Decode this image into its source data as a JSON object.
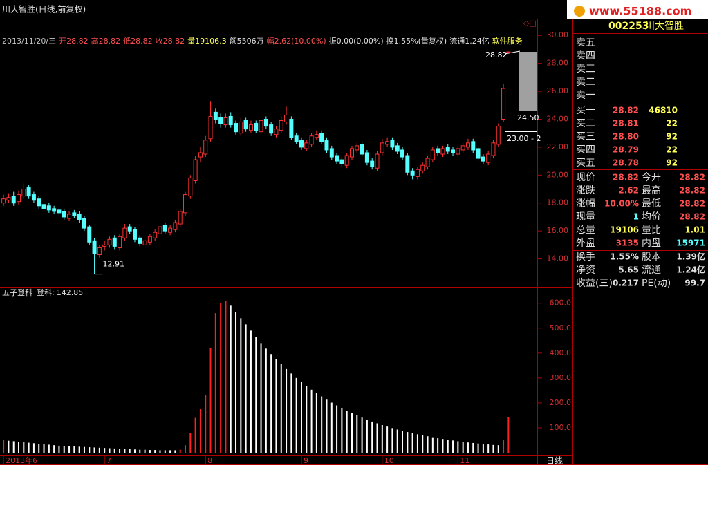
{
  "header": {
    "title": "川大智胜(日线,前复权)",
    "logo": "www.55188.com",
    "period_label": "日线"
  },
  "info_bar": {
    "segments": [
      "2013/11/20/三",
      "开28.82",
      "高28.82",
      "低28.82",
      "收28.82",
      "量19106.3",
      "额5506万",
      "幅2.62(10.00%)",
      "振0.00(0.00%)",
      "换1.55%(量复权)",
      "流通1.24亿",
      "软件服务"
    ],
    "colors": [
      "#c0c0c0",
      "#ff5050",
      "#ff5050",
      "#ff5050",
      "#ff5050",
      "#ffff54",
      "#e0e0e0",
      "#ff5050",
      "#e0e0e0",
      "#e0e0e0",
      "#e0e0e0",
      "#ffff54"
    ]
  },
  "chart_data": [
    {
      "type": "candlestick",
      "up_color": "#ff3232",
      "down_color": "#54ffff",
      "xlim": [
        -0.7,
        105.7
      ],
      "ylim": [
        12,
        31.15
      ],
      "yticks": [
        {
          "value": 14,
          "label": "14.00"
        },
        {
          "value": 16,
          "label": "16.00"
        },
        {
          "value": 18,
          "label": "18.00"
        },
        {
          "value": 20,
          "label": "20.00"
        },
        {
          "value": 22,
          "label": "22.00"
        },
        {
          "value": 24,
          "label": "24.00"
        },
        {
          "value": 26,
          "label": "26.00"
        },
        {
          "value": 28,
          "label": "28.00"
        },
        {
          "value": 30,
          "label": "30.00"
        }
      ],
      "annotations": [
        "24.50",
        "23.00 - 2"
      ],
      "open": [
        18.0,
        18.2,
        18.5,
        18.1,
        18.5,
        19.1,
        18.6,
        18.3,
        17.9,
        17.8,
        17.6,
        17.5,
        17.4,
        16.9,
        17.3,
        17.2,
        16.9,
        16.3,
        15.3,
        14.3,
        14.9,
        15.0,
        15.5,
        14.8,
        15.5,
        16.3,
        16.1,
        15.5,
        15.0,
        15.2,
        15.5,
        15.8,
        16.4,
        15.9,
        16.1,
        16.5,
        17.3,
        18.5,
        19.6,
        21.3,
        21.5,
        22.6,
        24.5,
        24.1,
        23.6,
        24.2,
        23.7,
        23.0,
        23.9,
        23.2,
        23.7,
        23.1,
        24.0,
        23.6,
        22.9,
        23.2,
        23.8,
        24.0,
        22.8,
        22.5,
        21.9,
        22.2,
        22.7,
        23.0,
        22.5,
        21.9,
        21.4,
        21.1,
        20.7,
        21.3,
        21.8,
        22.2,
        21.6,
        21.0,
        20.5,
        21.6,
        22.2,
        22.5,
        22.1,
        21.8,
        21.4,
        20.3,
        19.9,
        20.3,
        20.6,
        21.1,
        21.9,
        21.5,
        22.0,
        21.8,
        21.5,
        21.8,
        22.0,
        22.4,
        21.9,
        21.3,
        20.9,
        21.4,
        22.2,
        24.0,
        28.82
      ],
      "high": [
        18.6,
        18.7,
        18.8,
        18.9,
        19.4,
        19.3,
        18.8,
        18.5,
        18.1,
        18.0,
        17.8,
        17.7,
        17.6,
        17.4,
        17.5,
        17.4,
        17.1,
        16.4,
        15.5,
        15.0,
        15.3,
        15.6,
        15.7,
        15.8,
        16.5,
        16.5,
        16.3,
        15.7,
        15.5,
        15.8,
        16.1,
        16.5,
        16.6,
        16.4,
        16.8,
        17.6,
        18.8,
        20.0,
        21.4,
        22.0,
        22.8,
        25.3,
        24.8,
        24.4,
        24.4,
        24.5,
        23.9,
        24.1,
        24.1,
        23.9,
        23.9,
        24.1,
        24.2,
        23.8,
        23.5,
        24.2,
        24.9,
        24.2,
        23.0,
        22.7,
        22.5,
        23.0,
        23.2,
        23.2,
        22.7,
        22.1,
        21.6,
        21.3,
        21.6,
        22.1,
        22.3,
        22.4,
        21.8,
        21.2,
        21.7,
        22.6,
        22.7,
        22.7,
        22.3,
        22.0,
        21.6,
        20.5,
        20.6,
        20.9,
        21.4,
        22.0,
        22.1,
        22.1,
        22.2,
        22.0,
        22.1,
        22.3,
        22.6,
        22.6,
        22.1,
        21.5,
        21.7,
        22.5,
        23.7,
        26.5,
        28.82
      ],
      "low": [
        17.8,
        18.0,
        17.8,
        17.9,
        18.3,
        18.3,
        18.0,
        17.6,
        17.4,
        17.3,
        17.2,
        17.1,
        16.8,
        16.7,
        16.9,
        16.6,
        16.0,
        15.0,
        12.91,
        14.1,
        14.6,
        14.8,
        14.7,
        14.6,
        15.3,
        15.8,
        15.2,
        14.9,
        14.8,
        15.0,
        15.3,
        15.6,
        15.8,
        15.7,
        15.9,
        16.3,
        17.1,
        18.3,
        19.4,
        20.9,
        21.3,
        22.4,
        23.7,
        23.4,
        23.4,
        23.4,
        22.9,
        22.8,
        23.1,
        23.0,
        23.0,
        22.9,
        23.3,
        22.8,
        22.7,
        23.0,
        23.6,
        22.5,
        22.2,
        21.8,
        21.7,
        22.0,
        22.5,
        22.2,
        21.6,
        21.1,
        20.8,
        20.6,
        20.5,
        21.1,
        21.6,
        21.3,
        20.7,
        20.4,
        20.3,
        21.4,
        22.0,
        21.8,
        21.5,
        21.1,
        20.0,
        19.7,
        19.7,
        20.1,
        20.4,
        20.9,
        21.4,
        21.3,
        21.5,
        21.4,
        21.3,
        21.6,
        21.8,
        21.6,
        21.0,
        20.8,
        20.7,
        21.2,
        22.0,
        23.8,
        28.82
      ],
      "close": [
        18.3,
        18.4,
        18.0,
        18.6,
        19.0,
        18.5,
        18.2,
        17.8,
        17.6,
        17.5,
        17.4,
        17.3,
        17.0,
        17.2,
        17.1,
        16.8,
        16.2,
        15.2,
        14.4,
        14.8,
        15.0,
        15.4,
        14.9,
        15.6,
        16.2,
        16.0,
        15.4,
        15.1,
        15.3,
        15.6,
        15.9,
        16.3,
        16.0,
        16.2,
        16.6,
        17.4,
        18.6,
        19.8,
        21.1,
        21.6,
        22.5,
        24.2,
        24.0,
        23.7,
        24.1,
        23.6,
        23.1,
        23.8,
        23.3,
        23.6,
        23.2,
        23.9,
        23.5,
        23.0,
        23.3,
        23.9,
        24.3,
        22.7,
        22.4,
        22.0,
        22.3,
        22.8,
        22.9,
        22.4,
        21.8,
        21.3,
        21.0,
        20.8,
        21.4,
        21.9,
        22.1,
        21.5,
        20.9,
        20.6,
        21.5,
        22.3,
        22.4,
        22.0,
        21.7,
        21.3,
        20.2,
        20.0,
        20.4,
        20.7,
        21.2,
        21.8,
        21.6,
        21.9,
        21.7,
        21.6,
        21.9,
        22.1,
        22.3,
        21.8,
        21.2,
        21.0,
        21.5,
        22.3,
        23.5,
        26.2,
        28.82
      ]
    },
    {
      "type": "bar",
      "title": "五子登科",
      "label": "登科:",
      "up_color": "#ff2020",
      "down_color": "#ffffff",
      "xlim": [
        -0.7,
        105.7
      ],
      "ylim": [
        0,
        663
      ],
      "xticks": [
        {
          "value": 0,
          "label": "2013年6"
        },
        {
          "value": 20,
          "label": "7"
        },
        {
          "value": 40,
          "label": "8"
        },
        {
          "value": 59,
          "label": "9"
        },
        {
          "value": 75,
          "label": "10"
        },
        {
          "value": 90,
          "label": "11"
        }
      ],
      "yticks": [
        {
          "value": 100,
          "label": "100.0"
        },
        {
          "value": 200,
          "label": "200.0"
        },
        {
          "value": 300,
          "label": "300.0"
        },
        {
          "value": 400,
          "label": "400.0"
        },
        {
          "value": 500,
          "label": "500.0"
        },
        {
          "value": 600,
          "label": "600.0"
        }
      ],
      "values": [
        50,
        48,
        46,
        44,
        42,
        40,
        38,
        36,
        34,
        32,
        30,
        28,
        27,
        26,
        25,
        24,
        23,
        22,
        21,
        20,
        19,
        18,
        17,
        16,
        15,
        14,
        13,
        12,
        12,
        11,
        11,
        10,
        10,
        10,
        10,
        12,
        30,
        80,
        140,
        175,
        230,
        420,
        560,
        600,
        610,
        590,
        565,
        540,
        515,
        490,
        465,
        440,
        418,
        396,
        375,
        355,
        336,
        318,
        300,
        284,
        268,
        253,
        239,
        226,
        213,
        201,
        190,
        179,
        169,
        159,
        150,
        141,
        133,
        125,
        118,
        111,
        105,
        99,
        93,
        88,
        83,
        78,
        74,
        70,
        66,
        62,
        58,
        55,
        52,
        49,
        46,
        43,
        41,
        39,
        37,
        35,
        33,
        31,
        30,
        50,
        142.85
      ]
    }
  ],
  "quote": {
    "code": "002253",
    "name": "川大智胜",
    "sell": [
      "卖五",
      "卖四",
      "卖三",
      "卖二",
      "卖一"
    ],
    "buy": [
      [
        "买一",
        "28.82",
        "46810"
      ],
      [
        "买二",
        "28.81",
        "22"
      ],
      [
        "买三",
        "28.80",
        "92"
      ],
      [
        "买四",
        "28.79",
        "22"
      ],
      [
        "买五",
        "28.78",
        "92"
      ]
    ],
    "buy_colors": [
      "#ff5050",
      "#ffff54"
    ],
    "stats": [
      [
        "现价",
        "28.82",
        "今开",
        "28.82"
      ],
      [
        "涨跌",
        "2.62",
        "最高",
        "28.82"
      ],
      [
        "涨幅",
        "10.00%",
        "最低",
        "28.82"
      ],
      [
        "现量",
        "1",
        "均价",
        "28.82"
      ],
      [
        "总量",
        "19106",
        "量比",
        "1.01"
      ],
      [
        "外盘",
        "3135",
        "内盘",
        "15971"
      ],
      [
        "换手",
        "1.55%",
        "股本",
        "1.39亿"
      ],
      [
        "净资",
        "5.65",
        "流通",
        "1.24亿"
      ],
      [
        "收益(三)",
        "0.217",
        "PE(动)",
        "99.7"
      ]
    ],
    "stat_colors": [
      [
        "#ff5050",
        "#ff5050"
      ],
      [
        "#ff5050",
        "#ff5050"
      ],
      [
        "#ff5050",
        "#ff5050"
      ],
      [
        "#54ffff",
        "#ff5050"
      ],
      [
        "#ffff54",
        "#ffff54"
      ],
      [
        "#ff5050",
        "#54ffff"
      ],
      [
        "#e0e0e0",
        "#e0e0e0"
      ],
      [
        "#e0e0e0",
        "#e0e0e0"
      ],
      [
        "#e0e0e0",
        "#e0e0e0"
      ]
    ]
  }
}
